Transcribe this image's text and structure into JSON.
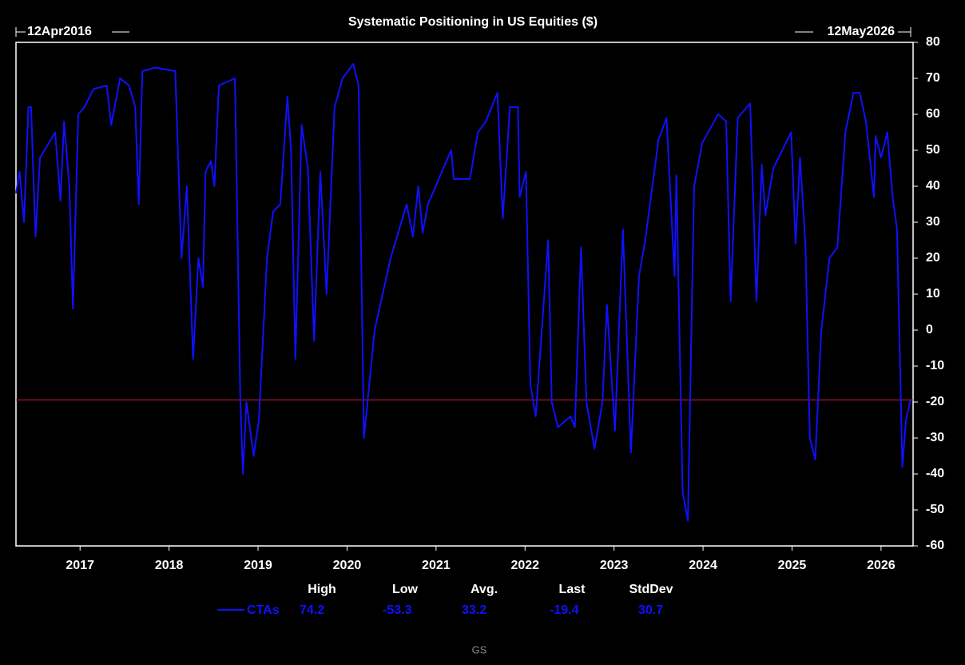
{
  "chart_data": {
    "type": "line",
    "title": "Systematic Positioning in US Equities ($)",
    "start_label": "12Apr2016",
    "end_label": "12May2026",
    "x": [
      2016.28,
      2016.32,
      2016.37,
      2016.42,
      2016.45,
      2016.5,
      2016.55,
      2016.65,
      2016.72,
      2016.78,
      2016.82,
      2016.88,
      2016.92,
      2016.98,
      2017.05,
      2017.15,
      2017.3,
      2017.35,
      2017.45,
      2017.55,
      2017.62,
      2017.66,
      2017.7,
      2017.85,
      2018.07,
      2018.14,
      2018.2,
      2018.27,
      2018.33,
      2018.38,
      2018.41,
      2018.47,
      2018.51,
      2018.56,
      2018.74,
      2018.8,
      2018.83,
      2018.87,
      2018.95,
      2019.01,
      2019.1,
      2019.17,
      2019.25,
      2019.33,
      2019.37,
      2019.42,
      2019.49,
      2019.56,
      2019.63,
      2019.7,
      2019.77,
      2019.86,
      2019.95,
      2020.07,
      2020.13,
      2020.19,
      2020.31,
      2020.49,
      2020.67,
      2020.74,
      2020.8,
      2020.85,
      2020.91,
      2021.03,
      2021.17,
      2021.2,
      2021.38,
      2021.47,
      2021.56,
      2021.69,
      2021.75,
      2021.83,
      2021.92,
      2021.94,
      2022.01,
      2022.06,
      2022.12,
      2022.26,
      2022.3,
      2022.37,
      2022.51,
      2022.56,
      2022.63,
      2022.69,
      2022.78,
      2022.87,
      2022.92,
      2023.01,
      2023.1,
      2023.19,
      2023.28,
      2023.35,
      2023.5,
      2023.59,
      2023.68,
      2023.7,
      2023.77,
      2023.83,
      2023.9,
      2023.99,
      2024.17,
      2024.26,
      2024.31,
      2024.39,
      2024.53,
      2024.6,
      2024.66,
      2024.7,
      2024.79,
      2024.93,
      2024.99,
      2025.04,
      2025.09,
      2025.15,
      2025.2,
      2025.26,
      2025.33,
      2025.42,
      2025.51,
      2025.6,
      2025.69,
      2025.76,
      2025.83,
      2025.92,
      2025.94,
      2026.0,
      2026.07,
      2026.13,
      2026.18,
      2026.24,
      2026.28,
      2026.33
    ],
    "series": [
      {
        "name": "CTAs",
        "color": "#1010ff",
        "values": [
          38,
          44,
          30,
          62,
          62,
          26,
          48,
          52,
          55,
          36,
          58,
          40,
          6,
          60,
          62,
          67,
          68,
          57,
          70,
          68,
          62,
          35,
          72,
          73,
          72,
          20,
          40,
          -8,
          20,
          12,
          44,
          47,
          40,
          68,
          70,
          -19,
          -40,
          -20,
          -35,
          -25,
          20,
          33,
          35,
          65,
          50,
          -8,
          57,
          45,
          -3,
          44,
          10,
          62,
          70,
          74,
          68,
          -30,
          0,
          20,
          35,
          26,
          40,
          27,
          35,
          42,
          50,
          42,
          42,
          55,
          58,
          66,
          31,
          62,
          62,
          37,
          44,
          -15,
          -24,
          25,
          -20,
          -27,
          -24,
          -27,
          23,
          -20,
          -33,
          -20,
          7,
          -28,
          28,
          -34,
          15,
          25,
          53,
          59,
          15,
          43,
          -45,
          -53,
          40,
          52,
          60,
          58,
          8,
          59,
          63,
          8,
          46,
          32,
          45,
          52,
          55,
          24,
          48,
          24,
          -30,
          -36,
          0,
          20,
          23,
          55,
          66,
          66,
          58,
          37,
          54,
          48,
          55,
          37,
          28,
          -38,
          -25,
          -19.4
        ]
      }
    ],
    "xlim": [
      2016.28,
      2026.36
    ],
    "xticks": [
      2017,
      2018,
      2019,
      2020,
      2021,
      2022,
      2023,
      2024,
      2025,
      2026
    ],
    "ylim": [
      -60,
      80
    ],
    "yticks": [
      -60,
      -50,
      -40,
      -30,
      -20,
      -10,
      0,
      10,
      20,
      30,
      40,
      50,
      60,
      70,
      80
    ],
    "stats": {
      "labels": [
        "High",
        "Low",
        "Avg.",
        "Last",
        "StdDev"
      ],
      "values": [
        74.2,
        -53.3,
        33.2,
        -19.4,
        30.7
      ],
      "line_color": "#c0182a"
    },
    "source": "GS"
  }
}
